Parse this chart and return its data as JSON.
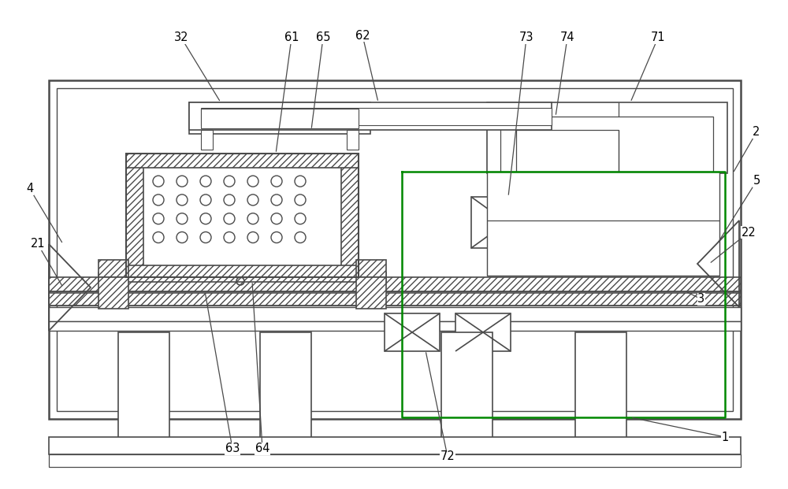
{
  "bg": "#ffffff",
  "lc": "#4a4a4a",
  "gc": "#008800",
  "lw": 1.3,
  "ann_fs": 10.5,
  "fig_w": 10.0,
  "fig_h": 6.21
}
